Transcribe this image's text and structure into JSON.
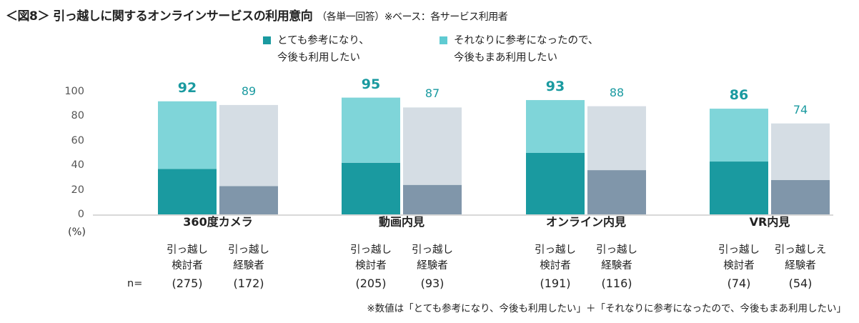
{
  "title": "＜図8＞ 引っ越しに関するオンラインサービスの利用意向",
  "subtitle": "（各単一回答）※ベース：各サービス利用者",
  "legend": [
    {
      "label1": "とても参考になり、",
      "label2": "今後も利用したい",
      "color": "#1a9aa0"
    },
    {
      "label1": "それなりに参考になったので、",
      "label2": "今後もまあ利用したい",
      "color": "#5fcbd2"
    }
  ],
  "n_label": "n=",
  "footnote": "※数値は「とても参考になり、今後も利用したい」＋「それなりに参考になったので、今後もまあ利用したい」",
  "chart_data": {
    "type": "bar",
    "stacked": true,
    "ylim": [
      0,
      100
    ],
    "yticks": [
      0,
      20,
      40,
      60,
      80,
      100
    ],
    "yunit": "(%)",
    "grid": false,
    "legend_position": "top",
    "colors": {
      "considering_strong": "#1a9aa0",
      "considering_mild": "#7fd5d9",
      "experienced_strong": "#8096aa",
      "experienced_mild": "#d5dde4",
      "label": "#1a9aa0"
    },
    "categories": [
      {
        "name": "360度カメラ",
        "bars": [
          {
            "group1": "引っ越し",
            "group2": "検討者",
            "n": "(275)",
            "strong": 37,
            "mild": 55,
            "total": "92"
          },
          {
            "group1": "引っ越し",
            "group2": "経験者",
            "n": "(172)",
            "strong": 23,
            "mild": 66,
            "total": "89"
          }
        ]
      },
      {
        "name": "動画内見",
        "bars": [
          {
            "group1": "引っ越し",
            "group2": "検討者",
            "n": "(205)",
            "strong": 42,
            "mild": 53,
            "total": "95"
          },
          {
            "group1": "引っ越し",
            "group2": "経験者",
            "n": "(93)",
            "strong": 24,
            "mild": 63,
            "total": "87"
          }
        ]
      },
      {
        "name": "オンライン内見",
        "bars": [
          {
            "group1": "引っ越し",
            "group2": "検討者",
            "n": "(191)",
            "strong": 50,
            "mild": 43,
            "total": "93"
          },
          {
            "group1": "引っ越し",
            "group2": "経験者",
            "n": "(116)",
            "strong": 36,
            "mild": 52,
            "total": "88"
          }
        ]
      },
      {
        "name": "VR内見",
        "bars": [
          {
            "group1": "引っ越し",
            "group2": "検討者",
            "n": "(74)",
            "strong": 43,
            "mild": 43,
            "total": "86"
          },
          {
            "group1": "引っ越しえ",
            "group2": "経験者",
            "n": "(54)",
            "strong": 28,
            "mild": 46,
            "total": "74"
          }
        ]
      }
    ]
  }
}
